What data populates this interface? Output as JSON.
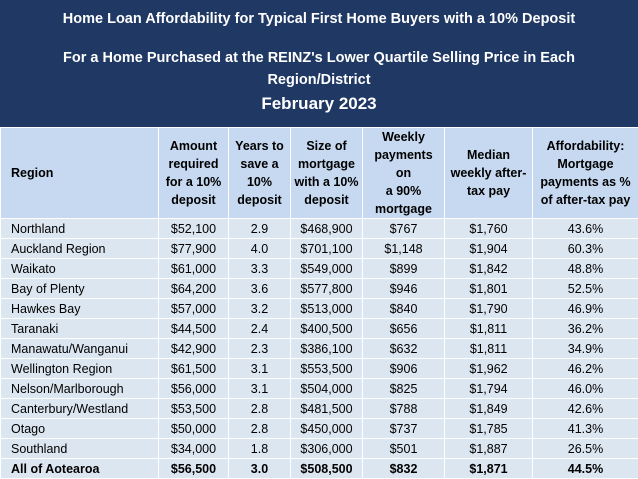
{
  "header": {
    "title": "Home Loan Affordability for Typical First Home Buyers with a 10% Deposit",
    "subtitle_lines": [
      "For a Home Purchased at the REINZ's Lower Quartile Selling Price in Each",
      "Region/District"
    ],
    "date": "February 2023"
  },
  "table": {
    "columns": [
      [
        "Region"
      ],
      [
        "Amount",
        "required",
        "for a 10%",
        "deposit"
      ],
      [
        "Years to",
        "save a",
        "10%",
        "deposit"
      ],
      [
        "Size of",
        "mortgage",
        "with a 10%",
        "deposit"
      ],
      [
        "Weekly",
        "payments on",
        "a 90%",
        "mortgage"
      ],
      [
        "Median",
        "weekly after-",
        "tax pay"
      ],
      [
        "Affordability:",
        "Mortgage",
        "payments as %",
        "of after-tax pay"
      ]
    ],
    "rows": [
      [
        "Northland",
        "$52,100",
        "2.9",
        "$468,900",
        "$767",
        "$1,760",
        "43.6%"
      ],
      [
        "Auckland Region",
        "$77,900",
        "4.0",
        "$701,100",
        "$1,148",
        "$1,904",
        "60.3%"
      ],
      [
        "Waikato",
        "$61,000",
        "3.3",
        "$549,000",
        "$899",
        "$1,842",
        "48.8%"
      ],
      [
        "Bay of Plenty",
        "$64,200",
        "3.6",
        "$577,800",
        "$946",
        "$1,801",
        "52.5%"
      ],
      [
        "Hawkes Bay",
        "$57,000",
        "3.2",
        "$513,000",
        "$840",
        "$1,790",
        "46.9%"
      ],
      [
        "Taranaki",
        "$44,500",
        "2.4",
        "$400,500",
        "$656",
        "$1,811",
        "36.2%"
      ],
      [
        "Manawatu/Wanganui",
        "$42,900",
        "2.3",
        "$386,100",
        "$632",
        "$1,811",
        "34.9%"
      ],
      [
        "Wellington Region",
        "$61,500",
        "3.1",
        "$553,500",
        "$906",
        "$1,962",
        "46.2%"
      ],
      [
        "Nelson/Marlborough",
        "$56,000",
        "3.1",
        "$504,000",
        "$825",
        "$1,794",
        "46.0%"
      ],
      [
        "Canterbury/Westland",
        "$53,500",
        "2.8",
        "$481,500",
        "$788",
        "$1,849",
        "42.6%"
      ],
      [
        "Otago",
        "$50,000",
        "2.8",
        "$450,000",
        "$737",
        "$1,785",
        "41.3%"
      ],
      [
        "Southland",
        "$34,000",
        "1.8",
        "$306,000",
        "$501",
        "$1,887",
        "26.5%"
      ],
      [
        "All of Aotearoa",
        "$56,500",
        "3.0",
        "$508,500",
        "$832",
        "$1,871",
        "44.5%"
      ]
    ]
  }
}
